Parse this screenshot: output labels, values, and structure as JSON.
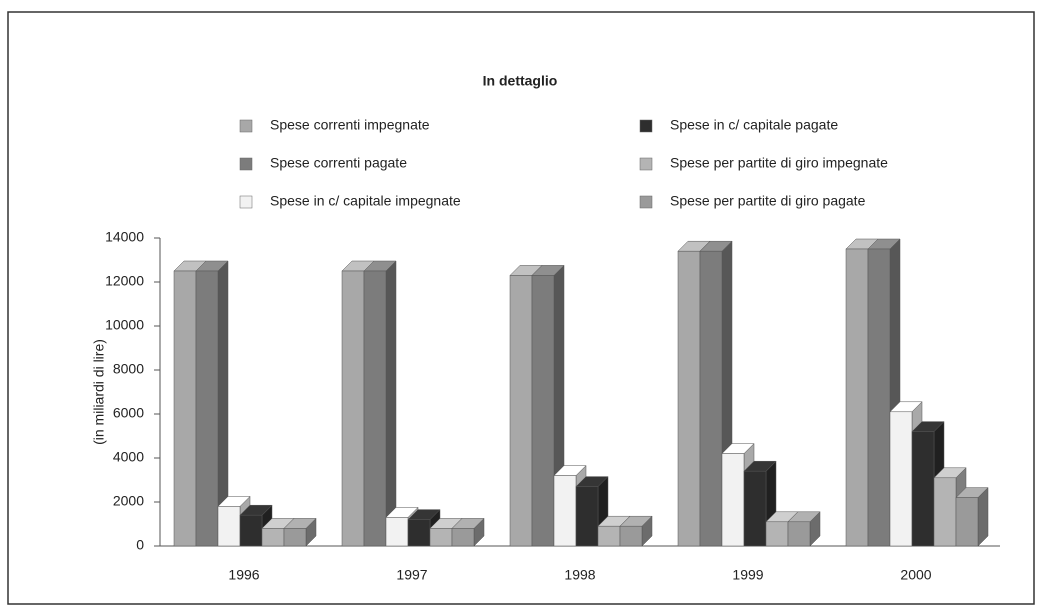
{
  "chart_data": {
    "type": "bar3d",
    "title": "In dettaglio",
    "y_label": "(in miliardi di lire)",
    "categories": [
      "1996",
      "1997",
      "1998",
      "1999",
      "2000"
    ],
    "series": [
      {
        "name": "Spese correnti impegnate",
        "color": "#a8a8a8",
        "values": [
          12500,
          12500,
          12300,
          13400,
          13500
        ]
      },
      {
        "name": "Spese correnti pagate",
        "color": "#7c7c7c",
        "values": [
          12500,
          12500,
          12300,
          13400,
          13500
        ]
      },
      {
        "name": "Spese in c/ capitale impegnate",
        "color": "#f2f2f2",
        "values": [
          1800,
          1300,
          3200,
          4200,
          6100
        ]
      },
      {
        "name": "Spese in c/ capitale pagate",
        "color": "#2e2e2e",
        "values": [
          1400,
          1200,
          2700,
          3400,
          5200
        ]
      },
      {
        "name": "Spese per partite di giro impegnate",
        "color": "#b4b4b4",
        "values": [
          800,
          800,
          900,
          1100,
          3100
        ]
      },
      {
        "name": "Spese per partite di giro pagate",
        "color": "#9a9a9a",
        "values": [
          800,
          800,
          900,
          1100,
          2200
        ]
      }
    ],
    "ylim": [
      0,
      14000
    ],
    "yticks": [
      0,
      2000,
      4000,
      6000,
      8000,
      10000,
      12000,
      14000
    ],
    "grid": false
  }
}
